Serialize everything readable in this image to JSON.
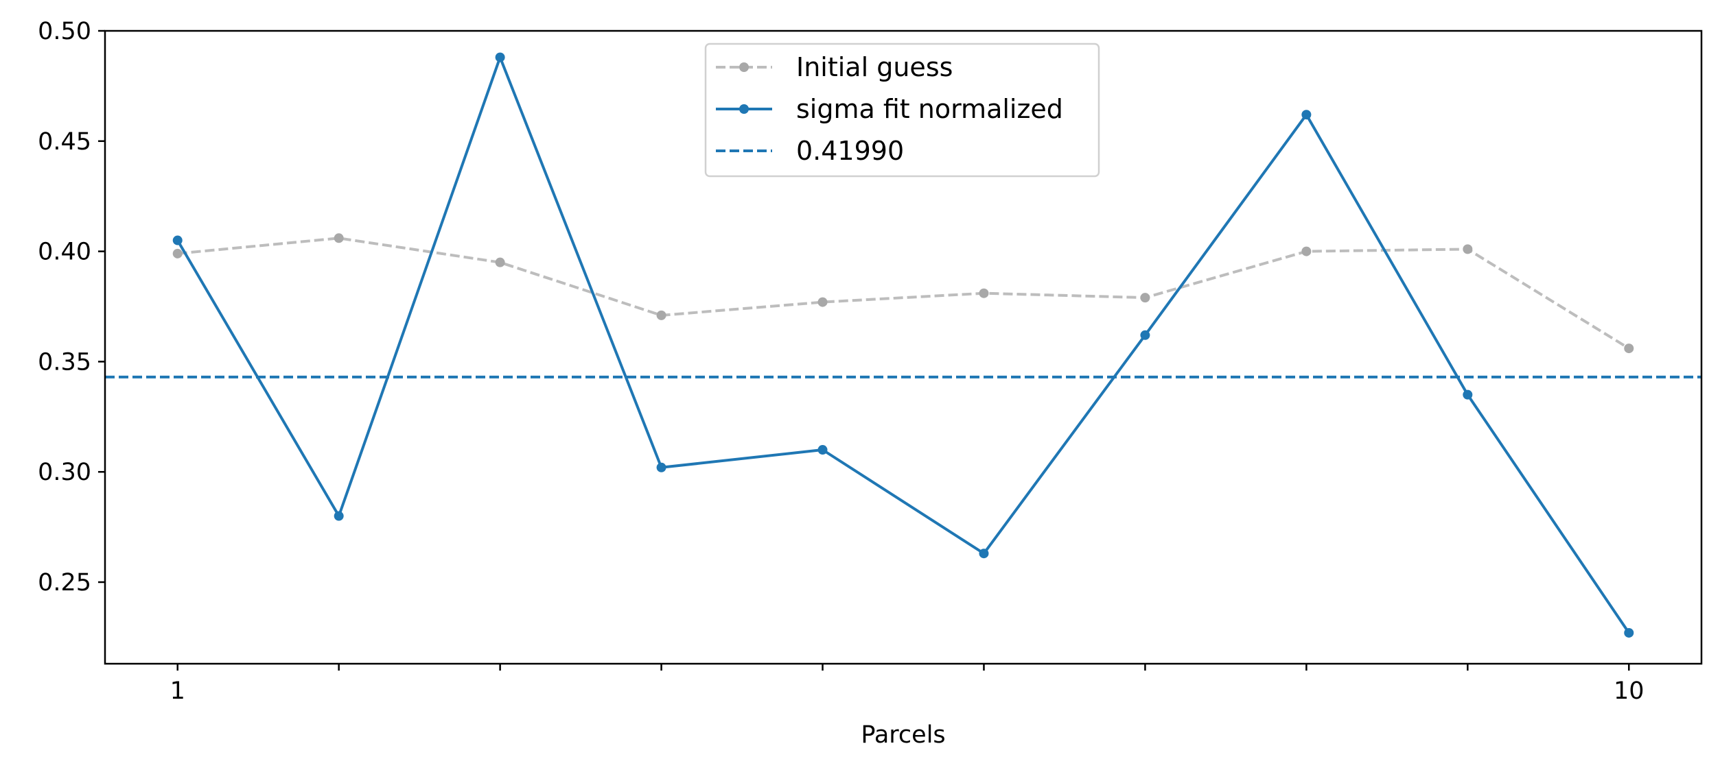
{
  "chart_data": {
    "type": "line",
    "title": "",
    "xlabel": "Parcels",
    "ylabel": "",
    "x": [
      1,
      2,
      3,
      4,
      5,
      6,
      7,
      8,
      9,
      10
    ],
    "x_tick_values": [
      1,
      2,
      3,
      4,
      5,
      6,
      7,
      8,
      9,
      10
    ],
    "x_tick_labels": [
      "1",
      "",
      "",
      "",
      "",
      "",
      "",
      "",
      "",
      "10"
    ],
    "xlim": [
      0.55,
      10.45
    ],
    "ylim": [
      0.213,
      0.5
    ],
    "y_ticks": [
      0.25,
      0.3,
      0.35,
      0.4,
      0.45,
      0.5
    ],
    "y_tick_labels": [
      "0.25",
      "0.30",
      "0.35",
      "0.40",
      "0.45",
      "0.50"
    ],
    "grid": false,
    "legend_position": "top-center",
    "series": [
      {
        "name": "Initial guess",
        "color": "#bdbdbd",
        "marker_color": "#a8a8a8",
        "linestyle": "dashed",
        "marker": "circle",
        "values": [
          0.399,
          0.406,
          0.395,
          0.371,
          0.377,
          0.381,
          0.379,
          0.4,
          0.401,
          0.356
        ]
      },
      {
        "name": "sigma fit normalized",
        "color": "#1f77b4",
        "linestyle": "solid",
        "marker": "circle",
        "values": [
          0.405,
          0.28,
          0.488,
          0.302,
          0.31,
          0.263,
          0.362,
          0.462,
          0.335,
          0.227
        ]
      }
    ],
    "reference_lines": [
      {
        "name": "0.41990",
        "color": "#1f77b4",
        "linestyle": "dashed",
        "orientation": "horizontal",
        "y": 0.343
      }
    ]
  }
}
